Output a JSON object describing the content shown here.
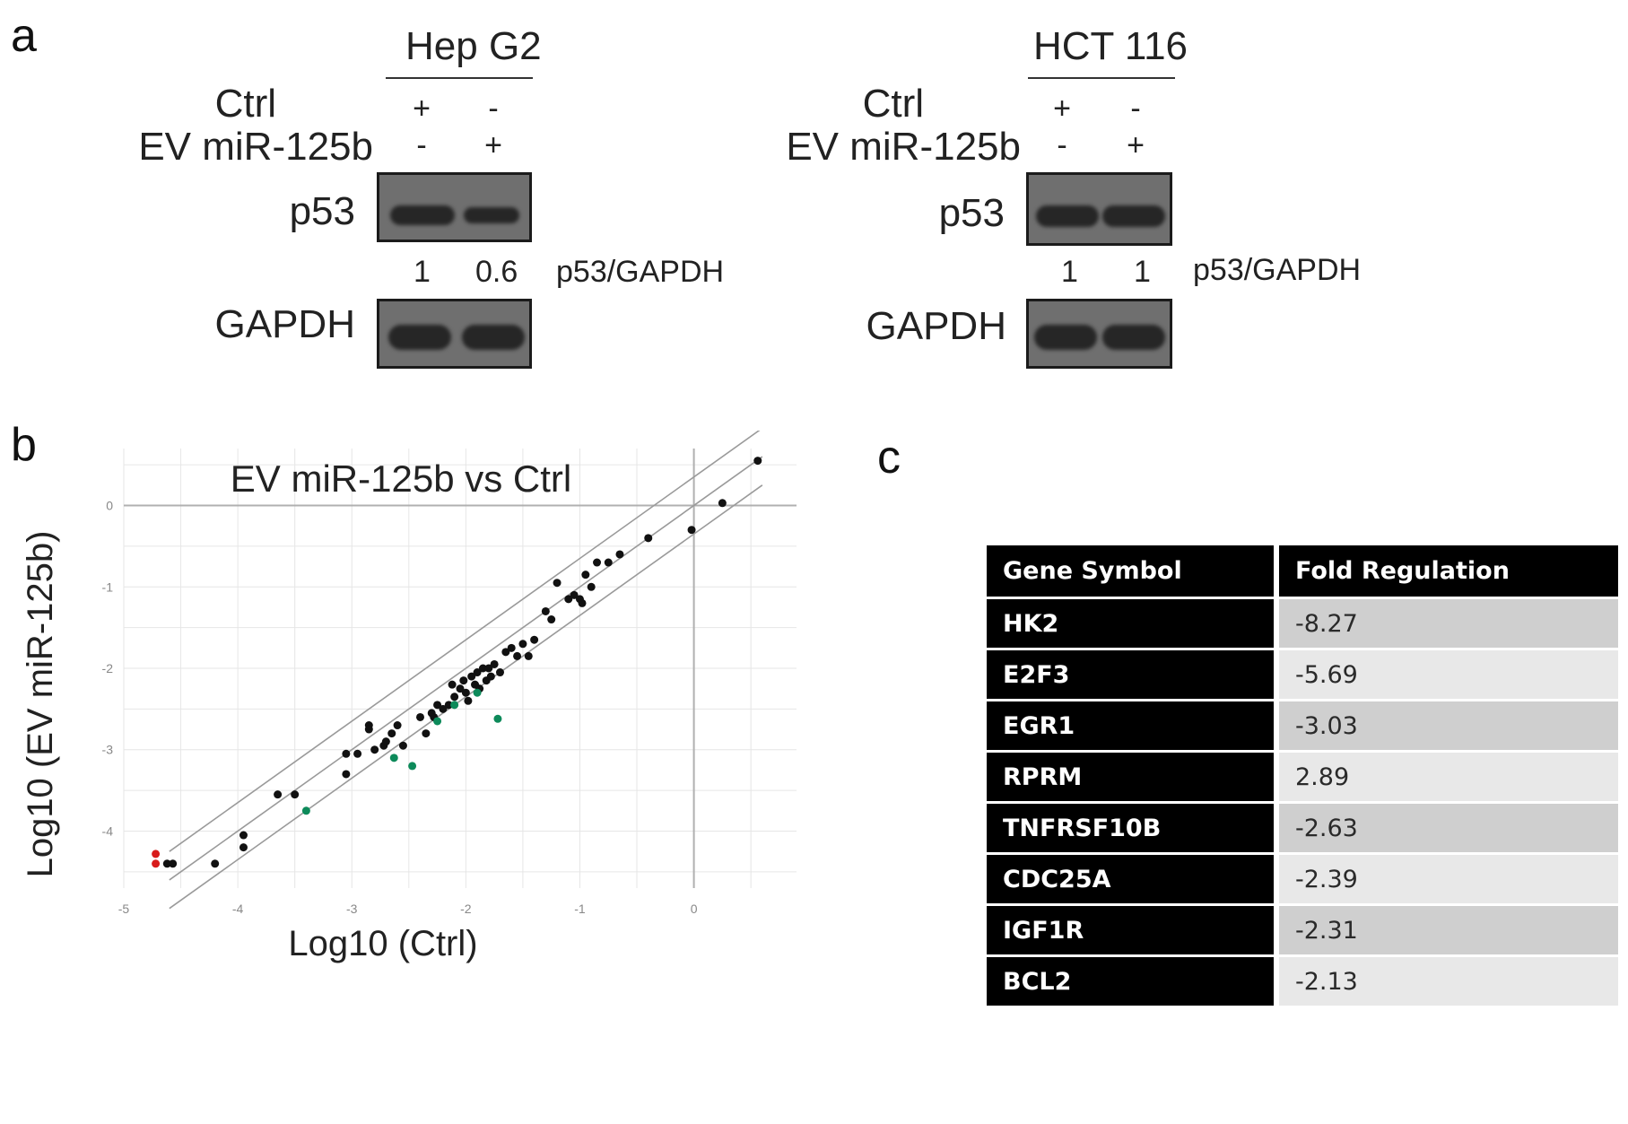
{
  "panel_a": {
    "letter": "a",
    "blots": [
      {
        "cell_line": "Hep G2",
        "ctrl_label": "Ctrl",
        "ev_label": "EV miR-125b",
        "ctrl_signs": [
          "+",
          "-"
        ],
        "ev_signs": [
          "-",
          "+"
        ],
        "p53_label": "p53",
        "gapdh_label": "GAPDH",
        "ratios": [
          "1",
          "0.6"
        ],
        "ratio_label": "p53/GAPDH"
      },
      {
        "cell_line": "HCT 116",
        "ctrl_label": "Ctrl",
        "ev_label": "EV miR-125b",
        "ctrl_signs": [
          "+",
          "-"
        ],
        "ev_signs": [
          "-",
          "+"
        ],
        "p53_label": "p53",
        "gapdh_label": "GAPDH",
        "ratios": [
          "1",
          "1"
        ],
        "ratio_label": "p53/GAPDH"
      }
    ]
  },
  "panel_b": {
    "letter": "b"
  },
  "panel_c": {
    "letter": "c",
    "headers": [
      "Gene Symbol",
      "Fold Regulation"
    ],
    "rows": [
      {
        "gene": "HK2",
        "fold": "-8.27"
      },
      {
        "gene": "E2F3",
        "fold": "-5.69"
      },
      {
        "gene": "EGR1",
        "fold": "-3.03"
      },
      {
        "gene": "RPRM",
        "fold": "2.89"
      },
      {
        "gene": "TNFRSF10B",
        "fold": "-2.63"
      },
      {
        "gene": "CDC25A",
        "fold": "-2.39"
      },
      {
        "gene": "IGF1R",
        "fold": "-2.31"
      },
      {
        "gene": "BCL2",
        "fold": "-2.13"
      }
    ]
  },
  "chart_data": {
    "type": "scatter",
    "title": "EV miR-125b vs Ctrl",
    "xlabel": "Log10 (Ctrl)",
    "ylabel": "Log10 (EV miR-125b)",
    "xlim": [
      -5,
      0.9
    ],
    "ylim": [
      -4.7,
      0.7
    ],
    "xticks": [
      -5,
      -4,
      -3,
      -2,
      -1,
      0
    ],
    "yticks": [
      0,
      -1,
      -2,
      -3,
      -4
    ],
    "reference_lines": [
      {
        "name": "upper threshold",
        "offset": 0.35
      },
      {
        "name": "identity",
        "offset": 0
      },
      {
        "name": "lower threshold",
        "offset": -0.35
      }
    ],
    "colors": {
      "unchanged": "#111111",
      "down": "#0d8a5a",
      "up": "#d81b1b",
      "grid": "#e6e6e6",
      "ref": "#9a9a9a",
      "axis": "#b0b0b0"
    },
    "series": [
      {
        "name": "unchanged",
        "points": [
          [
            -4.62,
            -4.4
          ],
          [
            -4.57,
            -4.4
          ],
          [
            -4.2,
            -4.4
          ],
          [
            -3.95,
            -4.05
          ],
          [
            -3.95,
            -4.2
          ],
          [
            -3.65,
            -3.55
          ],
          [
            -3.5,
            -3.55
          ],
          [
            -3.05,
            -3.05
          ],
          [
            -3.05,
            -3.3
          ],
          [
            -2.95,
            -3.05
          ],
          [
            -2.85,
            -2.7
          ],
          [
            -2.85,
            -2.75
          ],
          [
            -2.8,
            -3.0
          ],
          [
            -2.72,
            -2.95
          ],
          [
            -2.7,
            -2.9
          ],
          [
            -2.65,
            -2.8
          ],
          [
            -2.6,
            -2.7
          ],
          [
            -2.55,
            -2.95
          ],
          [
            -2.4,
            -2.6
          ],
          [
            -2.35,
            -2.8
          ],
          [
            -2.3,
            -2.55
          ],
          [
            -2.28,
            -2.6
          ],
          [
            -2.25,
            -2.45
          ],
          [
            -2.2,
            -2.5
          ],
          [
            -2.15,
            -2.45
          ],
          [
            -2.12,
            -2.2
          ],
          [
            -2.1,
            -2.35
          ],
          [
            -2.05,
            -2.25
          ],
          [
            -2.02,
            -2.15
          ],
          [
            -2.0,
            -2.3
          ],
          [
            -1.98,
            -2.4
          ],
          [
            -1.95,
            -2.1
          ],
          [
            -1.92,
            -2.2
          ],
          [
            -1.9,
            -2.05
          ],
          [
            -1.88,
            -2.25
          ],
          [
            -1.85,
            -2.0
          ],
          [
            -1.82,
            -2.15
          ],
          [
            -1.8,
            -2.0
          ],
          [
            -1.78,
            -2.1
          ],
          [
            -1.75,
            -1.95
          ],
          [
            -1.7,
            -2.05
          ],
          [
            -1.65,
            -1.8
          ],
          [
            -1.6,
            -1.75
          ],
          [
            -1.55,
            -1.85
          ],
          [
            -1.5,
            -1.7
          ],
          [
            -1.45,
            -1.85
          ],
          [
            -1.4,
            -1.65
          ],
          [
            -1.3,
            -1.3
          ],
          [
            -1.25,
            -1.4
          ],
          [
            -1.2,
            -0.95
          ],
          [
            -1.1,
            -1.15
          ],
          [
            -1.05,
            -1.1
          ],
          [
            -1.0,
            -1.15
          ],
          [
            -0.98,
            -1.2
          ],
          [
            -0.95,
            -0.85
          ],
          [
            -0.9,
            -1.0
          ],
          [
            -0.85,
            -0.7
          ],
          [
            -0.75,
            -0.7
          ],
          [
            -0.65,
            -0.6
          ],
          [
            -0.4,
            -0.4
          ],
          [
            -0.02,
            -0.3
          ],
          [
            0.25,
            0.03
          ],
          [
            0.56,
            0.55
          ]
        ]
      },
      {
        "name": "down",
        "points": [
          [
            -3.4,
            -3.75
          ],
          [
            -2.63,
            -3.1
          ],
          [
            -2.47,
            -3.2
          ],
          [
            -2.25,
            -2.65
          ],
          [
            -2.1,
            -2.45
          ],
          [
            -1.9,
            -2.3
          ],
          [
            -1.72,
            -2.62
          ]
        ]
      },
      {
        "name": "up",
        "points": [
          [
            -4.72,
            -4.28
          ],
          [
            -4.72,
            -4.4
          ]
        ]
      }
    ]
  }
}
